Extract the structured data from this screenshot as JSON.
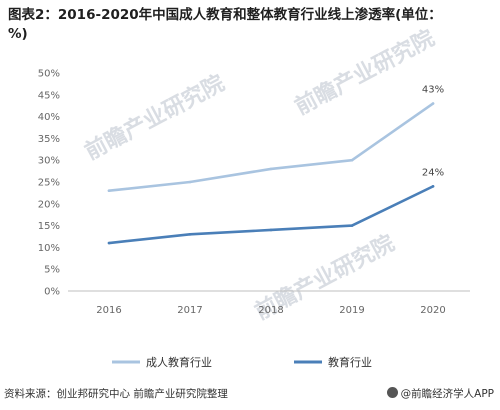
{
  "title": "图表2：2016-2020年中国成人教育和整体教育行业线上渗透率(单位：%)",
  "source": "资料来源：创业邦研究中心 前瞻产业研究院整理",
  "brand": "@前瞻经济学人APP",
  "watermark": "前瞻产业研究院",
  "chart_data": {
    "type": "line",
    "x": [
      "2016",
      "2017",
      "2018",
      "2019",
      "2020"
    ],
    "ylim": [
      0,
      50
    ],
    "yticks": [
      "0%",
      "5%",
      "10%",
      "15%",
      "20%",
      "25%",
      "30%",
      "35%",
      "40%",
      "45%",
      "50%"
    ],
    "grid": false,
    "legend": "bottom",
    "series": [
      {
        "name": "成人教育行业",
        "values": [
          23,
          25,
          28,
          30,
          43
        ],
        "color": "#a9c4e0",
        "end_label": "43%"
      },
      {
        "name": "教育行业",
        "values": [
          11,
          13,
          14,
          15,
          24
        ],
        "color": "#4a7fb8",
        "end_label": "24%"
      }
    ]
  }
}
